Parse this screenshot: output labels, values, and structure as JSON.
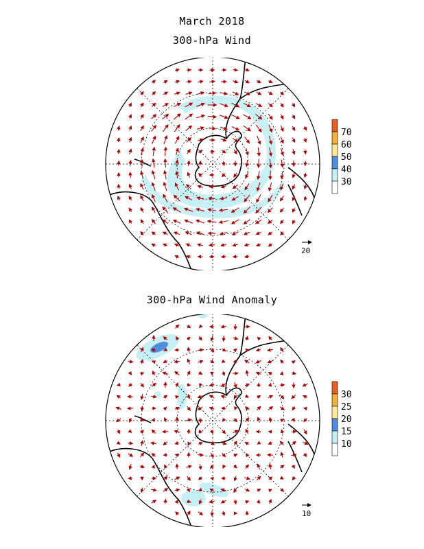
{
  "header": {
    "title": "March 2018",
    "panel1_title": "300-hPa Wind",
    "panel2_title": "300-hPa Wind Anomaly"
  },
  "panels": [
    {
      "id": "wind",
      "colorbar": {
        "labels": [
          "30",
          "40",
          "50",
          "60",
          "70"
        ],
        "colors": [
          "#ffffff",
          "#c5f0f5",
          "#4f8fe0",
          "#fbe898",
          "#f5b03c",
          "#e8601c"
        ]
      },
      "reference_vector": "20"
    },
    {
      "id": "anomaly",
      "colorbar": {
        "labels": [
          "10",
          "15",
          "20",
          "25",
          "30"
        ],
        "colors": [
          "#ffffff",
          "#c5f0f5",
          "#4f8fe0",
          "#fbe898",
          "#f5b03c",
          "#e8601c"
        ]
      },
      "reference_vector": "10"
    }
  ],
  "style": {
    "arrow_color": "#b00000",
    "shade_light": "#c5f0f5",
    "shade_dark": "#4f8fe0"
  }
}
